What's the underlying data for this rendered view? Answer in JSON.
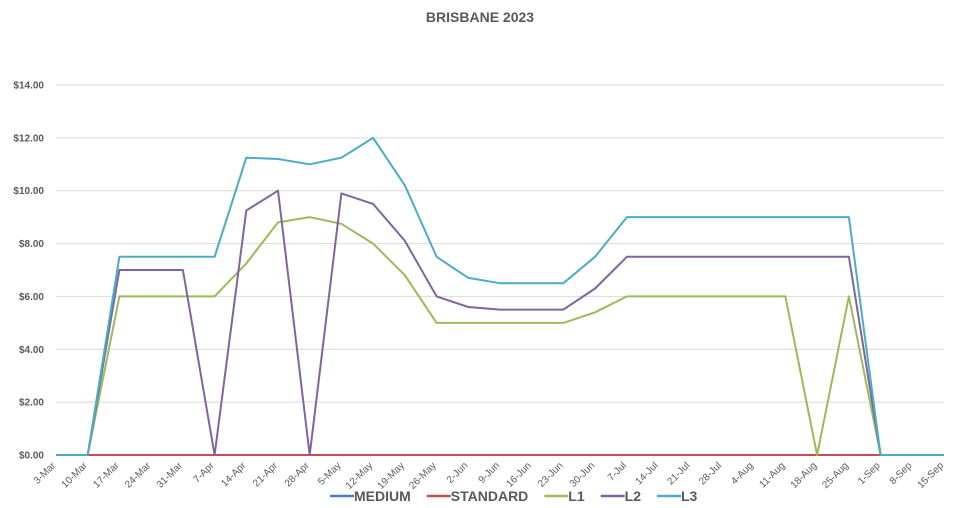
{
  "chart_data": {
    "type": "line",
    "title": "BRISBANE 2023",
    "xlabel": "",
    "ylabel": "",
    "ylim": [
      0,
      14
    ],
    "yticks": [
      "$0.00",
      "$2.00",
      "$4.00",
      "$6.00",
      "$8.00",
      "$10.00",
      "$12.00",
      "$14.00"
    ],
    "grid": true,
    "legend_position": "bottom",
    "categories": [
      "3-Mar",
      "10-Mar",
      "17-Mar",
      "24-Mar",
      "31-Mar",
      "7-Apr",
      "14-Apr",
      "21-Apr",
      "28-Apr",
      "5-May",
      "12-May",
      "19-May",
      "26-May",
      "2-Jun",
      "9-Jun",
      "16-Jun",
      "23-Jun",
      "30-Jun",
      "7-Jul",
      "14-Jul",
      "21-Jul",
      "28-Jul",
      "4-Aug",
      "11-Aug",
      "18-Aug",
      "25-Aug",
      "1-Sep",
      "8-Sep",
      "15-Sep"
    ],
    "series": [
      {
        "name": "MEDIUM",
        "color": "#4a7bbd",
        "values": [
          0,
          0,
          0,
          0,
          0,
          0,
          0,
          0,
          0,
          0,
          0,
          0,
          0,
          0,
          0,
          0,
          0,
          0,
          0,
          0,
          0,
          0,
          0,
          0,
          0,
          0,
          0,
          0,
          0
        ]
      },
      {
        "name": "STANDARD",
        "color": "#c0504d",
        "values": [
          0,
          0,
          0,
          0,
          0,
          0,
          0,
          0,
          0,
          0,
          0,
          0,
          0,
          0,
          0,
          0,
          0,
          0,
          0,
          0,
          0,
          0,
          0,
          0,
          0,
          0,
          0,
          0,
          0
        ]
      },
      {
        "name": "L1",
        "color": "#9bbb59",
        "values": [
          0,
          0,
          6.0,
          6.0,
          6.0,
          6.0,
          7.25,
          8.8,
          9.0,
          8.75,
          8.0,
          6.8,
          5.0,
          5.0,
          5.0,
          5.0,
          5.0,
          5.4,
          6.0,
          6.0,
          6.0,
          6.0,
          6.0,
          6.0,
          0,
          6.0,
          0,
          0,
          0
        ]
      },
      {
        "name": "L2",
        "color": "#8064a2",
        "values": [
          0,
          0,
          7.0,
          7.0,
          7.0,
          0,
          9.25,
          10.0,
          0,
          9.9,
          9.5,
          8.1,
          6.0,
          5.6,
          5.5,
          5.5,
          5.5,
          6.3,
          7.5,
          7.5,
          7.5,
          7.5,
          7.5,
          7.5,
          7.5,
          7.5,
          0,
          0,
          0
        ]
      },
      {
        "name": "L3",
        "color": "#4bacc6",
        "values": [
          0,
          0,
          7.5,
          7.5,
          7.5,
          7.5,
          11.25,
          11.2,
          11.0,
          11.25,
          12.0,
          10.2,
          7.5,
          6.7,
          6.5,
          6.5,
          6.5,
          7.5,
          9.0,
          9.0,
          9.0,
          9.0,
          9.0,
          9.0,
          9.0,
          9.0,
          0,
          0,
          0
        ]
      }
    ]
  }
}
